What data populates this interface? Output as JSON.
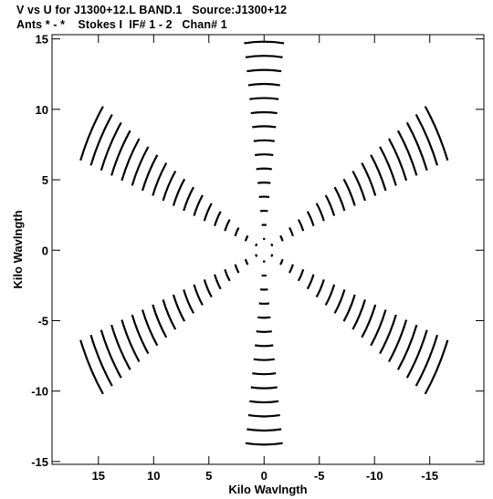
{
  "header": {
    "line1": "V vs U for J1300+12.L BAND.1   Source:J1300+12",
    "line2": "Ants * - *    Stokes I  IF# 1 - 2   Chan# 1"
  },
  "chart_data": {
    "type": "scatter",
    "title": "V vs U for J1300+12.L BAND.1   Source:J1300+12",
    "subtitle": "Ants * - *    Stokes I  IF# 1 - 2   Chan# 1",
    "xlabel": "Kilo Wavlngth",
    "ylabel": "Kilo Wavlngth",
    "xlim": [
      19.2,
      -19.9
    ],
    "ylim": [
      -15.2,
      15.3
    ],
    "x_reversed": true,
    "grid": false,
    "x_ticks": [
      15,
      10,
      5,
      0,
      -5,
      -10,
      -15
    ],
    "x_tick_labels": [
      "15",
      "10",
      "5",
      "0",
      "-5",
      "-10",
      "-15"
    ],
    "y_ticks": [
      15,
      10,
      5,
      0,
      -5,
      -10,
      -15
    ],
    "y_tick_labels": [
      "15",
      "10",
      "5",
      "0",
      "-5",
      "-10",
      "-15"
    ],
    "uv_pattern": {
      "arm_angles_deg": [
        90,
        28,
        152
      ],
      "max_radius_klambda": 18.3,
      "ring_step_klambda": 1.0,
      "arc_half_width_deg": 7,
      "conjugate_symmetric": true
    }
  }
}
